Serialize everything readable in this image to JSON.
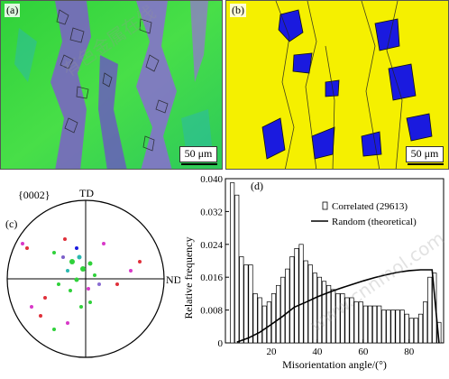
{
  "figure": {
    "panel_a": {
      "label": "(a)",
      "scale_bar": "50 μm"
    },
    "panel_b": {
      "label": "(b)",
      "scale_bar": "50 μm"
    },
    "panel_c": {
      "label": "(c)",
      "pole_label": "{0002}",
      "top_axis": "TD",
      "right_axis": "ND"
    },
    "panel_d": {
      "label": "(d)"
    },
    "watermark_text": "www.cnnmol.com"
  },
  "colors": {
    "map_a_background": "#39d838",
    "map_b_background": "#f5f000",
    "grain_blue": "#1a1adf",
    "random_curve": "#000000"
  },
  "chart_data": {
    "type": "bar",
    "xlabel": "Misorientation angle/(°)",
    "ylabel": "Relative frequency",
    "xlim": [
      0,
      95
    ],
    "ylim": [
      0,
      0.04
    ],
    "xticks": [
      20,
      40,
      60,
      80
    ],
    "yticks": [
      0,
      0.008,
      0.016,
      0.024,
      0.032,
      0.04
    ],
    "ytick_labels": [
      "0",
      "0.008",
      "0.016",
      "0.024",
      "0.032",
      "0.040"
    ],
    "legend": {
      "placement": "top-right"
    },
    "series": [
      {
        "name": "Correlated (29613)",
        "kind": "bar",
        "bin_width": 1.75,
        "x": [
          3,
          5,
          7,
          9,
          11,
          13,
          15,
          17,
          19,
          21,
          23,
          25,
          27,
          29,
          31,
          33,
          35,
          37,
          39,
          41,
          43,
          45,
          47,
          49,
          51,
          53,
          55,
          57,
          59,
          61,
          63,
          65,
          67,
          69,
          71,
          73,
          75,
          77,
          79,
          81,
          83,
          85,
          87,
          89,
          91,
          93
        ],
        "values": [
          0.039,
          0.036,
          0.021,
          0.019,
          0.019,
          0.012,
          0.011,
          0.009,
          0.01,
          0.012,
          0.014,
          0.016,
          0.018,
          0.021,
          0.023,
          0.024,
          0.02,
          0.019,
          0.017,
          0.016,
          0.015,
          0.014,
          0.013,
          0.012,
          0.012,
          0.011,
          0.011,
          0.01,
          0.01,
          0.009,
          0.009,
          0.009,
          0.009,
          0.008,
          0.008,
          0.008,
          0.008,
          0.008,
          0.007,
          0.006,
          0.006,
          0.007,
          0.01,
          0.016,
          0.017,
          0.005
        ]
      },
      {
        "name": "Random (theoretical)",
        "kind": "line",
        "x": [
          5,
          10,
          15,
          20,
          25,
          30,
          35,
          40,
          45,
          50,
          55,
          60,
          65,
          70,
          75,
          80,
          85,
          90,
          93
        ],
        "values": [
          0.0002,
          0.0012,
          0.0026,
          0.0045,
          0.0065,
          0.0087,
          0.0099,
          0.0112,
          0.0123,
          0.0133,
          0.0142,
          0.0151,
          0.0159,
          0.0166,
          0.0172,
          0.0176,
          0.0178,
          0.0178,
          0.0
        ]
      }
    ]
  }
}
